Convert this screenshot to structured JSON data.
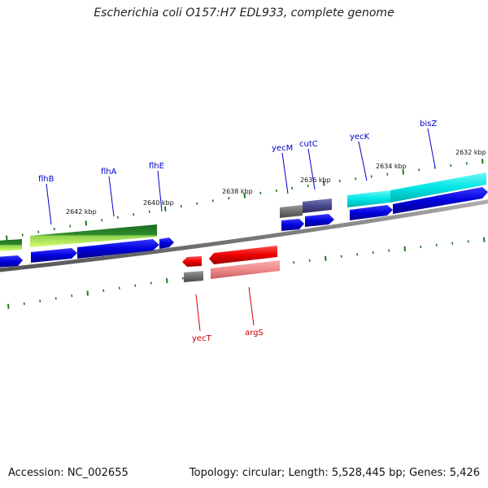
{
  "title": "Escherichia coli O157:H7 EDL933, complete genome",
  "footer": {
    "accession": "Accession: NC_002655",
    "topology": "Topology: circular; Length: 5,528,445 bp; Genes: 5,426"
  },
  "ticks": [
    "2632 kbp",
    "2634 kbp",
    "2636 kbp",
    "2638 kbp",
    "2640 kbp",
    "2642 kbp"
  ],
  "genes": [
    {
      "name": "flhB",
      "strand": "forward",
      "label_color": "#0000cc"
    },
    {
      "name": "flhA",
      "strand": "forward",
      "label_color": "#0000cc"
    },
    {
      "name": "flhE",
      "strand": "forward",
      "label_color": "#0000cc"
    },
    {
      "name": "yecM",
      "strand": "forward",
      "label_color": "#0000cc"
    },
    {
      "name": "cutC",
      "strand": "forward",
      "label_color": "#0000cc"
    },
    {
      "name": "yecK",
      "strand": "forward",
      "label_color": "#0000cc"
    },
    {
      "name": "bisZ",
      "strand": "forward",
      "label_color": "#0000cc"
    },
    {
      "name": "yecT",
      "strand": "reverse",
      "label_color": "#cc0000"
    },
    {
      "name": "argS",
      "strand": "reverse",
      "label_color": "#cc0000"
    }
  ],
  "colors": {
    "backbone": "#7a7a7a",
    "cds_forward": "#0000dd",
    "cds_reverse": "#ee0000",
    "tick": "#1f7a1f",
    "green_track": "#2e8b2e",
    "cyan_track": "#00e5e5",
    "gray_track": "#6f6f6f",
    "purple_track": "#4a4a8c",
    "pink_track": "#ee8a8a"
  }
}
